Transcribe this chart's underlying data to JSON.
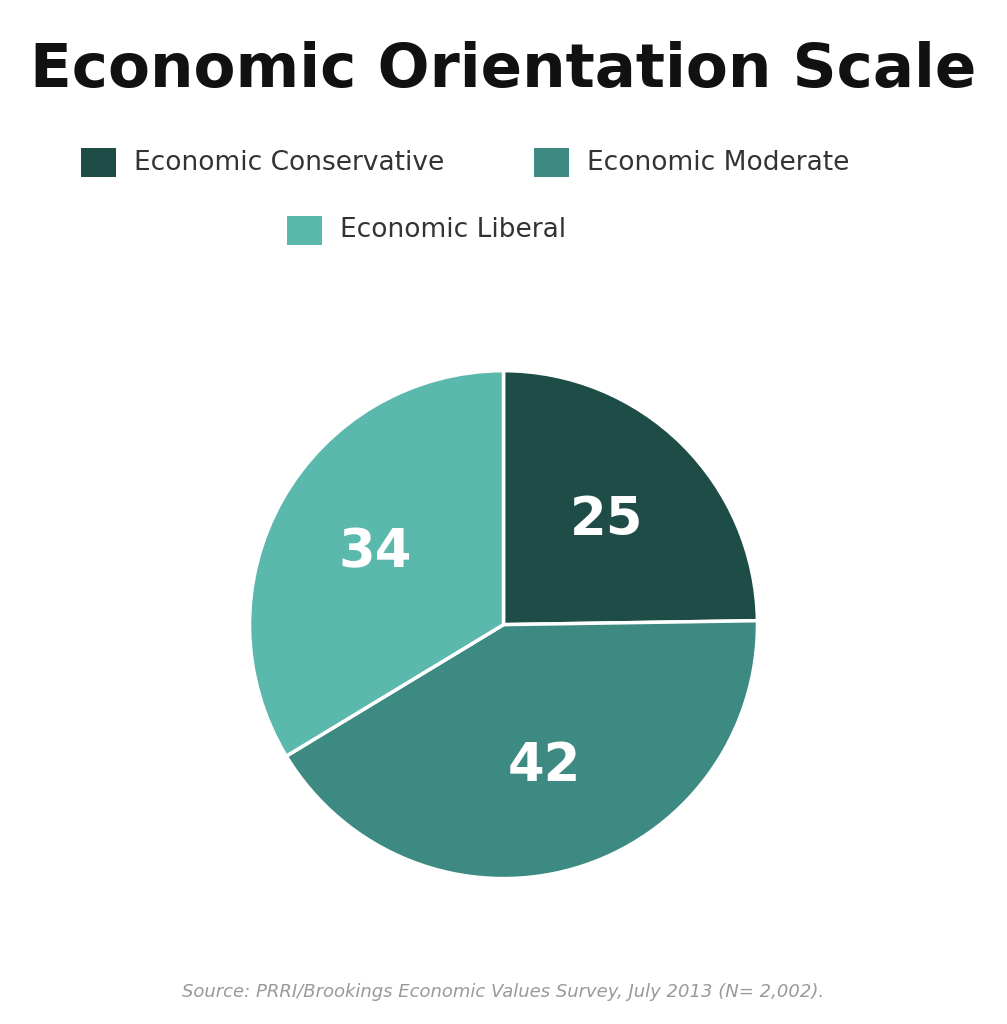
{
  "title": "Economic Orientation Scale",
  "labels": [
    "Economic Conservative",
    "Economic Moderate",
    "Economic Liberal"
  ],
  "values": [
    25,
    42,
    34
  ],
  "colors": [
    "#1e4d47",
    "#3d8a82",
    "#5bb8ad"
  ],
  "text_labels": [
    "25",
    "42",
    "34"
  ],
  "source_text": "Source: PRRI/Brookings Economic Values Survey, July 2013 (N= 2,002).",
  "background_color": "#ffffff",
  "title_fontsize": 44,
  "label_fontsize": 19,
  "slice_fontsize": 38,
  "source_fontsize": 13,
  "wedge_edge_color": "#ffffff",
  "wedge_linewidth": 2.5
}
